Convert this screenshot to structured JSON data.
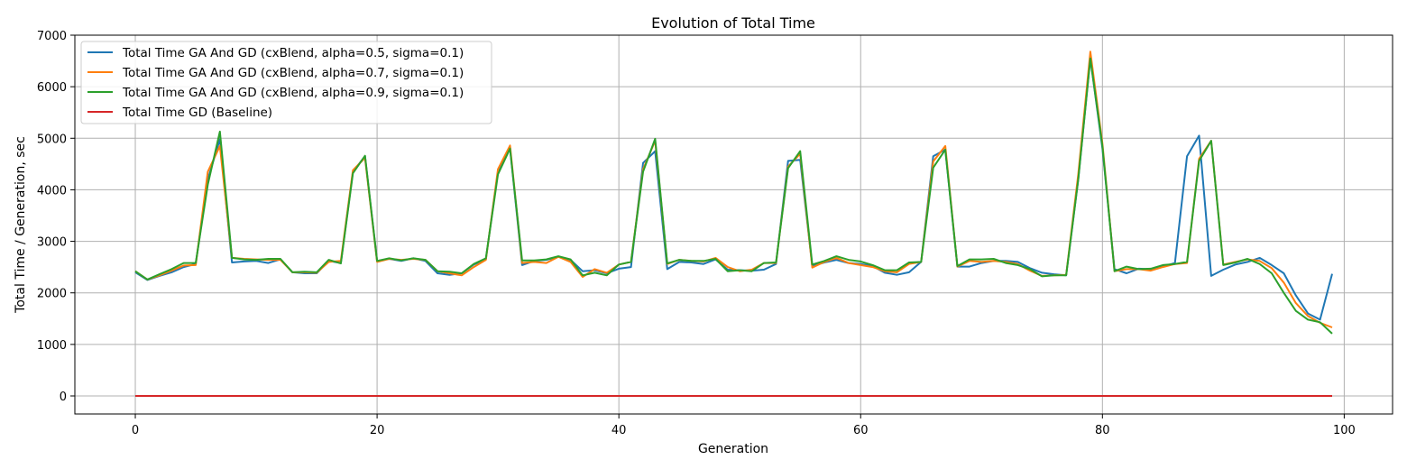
{
  "chart_data": {
    "type": "line",
    "title": "Evolution of Total Time",
    "xlabel": "Generation",
    "ylabel": "Total Time / Generation, sec",
    "xlim": [
      -5,
      104
    ],
    "ylim": [
      -350,
      7000
    ],
    "xticks": [
      0,
      20,
      40,
      60,
      80,
      100
    ],
    "yticks": [
      0,
      1000,
      2000,
      3000,
      4000,
      5000,
      6000,
      7000
    ],
    "grid": true,
    "legend_position": "top-left",
    "series": [
      {
        "name": "Total Time GA And GD (cxBlend, alpha=0.5, sigma=0.1)",
        "color": "#1f77b4",
        "values": [
          2400,
          2250,
          2330,
          2400,
          2500,
          2560,
          4200,
          4980,
          2590,
          2610,
          2620,
          2580,
          2650,
          2400,
          2380,
          2380,
          2620,
          2580,
          4350,
          4650,
          2620,
          2660,
          2620,
          2670,
          2620,
          2380,
          2350,
          2380,
          2550,
          2650,
          4350,
          4800,
          2540,
          2620,
          2640,
          2700,
          2640,
          2420,
          2440,
          2380,
          2470,
          2500,
          4520,
          4750,
          2460,
          2600,
          2590,
          2560,
          2650,
          2450,
          2440,
          2430,
          2450,
          2560,
          4560,
          4580,
          2520,
          2590,
          2640,
          2580,
          2560,
          2520,
          2390,
          2350,
          2400,
          2600,
          4650,
          4780,
          2510,
          2510,
          2580,
          2620,
          2620,
          2600,
          2480,
          2390,
          2360,
          2340,
          4200,
          6550,
          4800,
          2460,
          2380,
          2470,
          2460,
          2510,
          2580,
          4650,
          5050,
          2330,
          2450,
          2550,
          2600,
          2680,
          2540,
          2380,
          1950,
          1600,
          1480,
          2370
        ]
      },
      {
        "name": "Total Time GA And GD (cxBlend, alpha=0.7, sigma=0.1)",
        "color": "#ff7f0e",
        "values": [
          2420,
          2260,
          2340,
          2430,
          2530,
          2540,
          4350,
          4850,
          2680,
          2660,
          2650,
          2640,
          2640,
          2400,
          2400,
          2390,
          2600,
          2620,
          4380,
          4620,
          2600,
          2660,
          2640,
          2660,
          2640,
          2420,
          2380,
          2340,
          2500,
          2640,
          4400,
          4860,
          2580,
          2600,
          2580,
          2700,
          2600,
          2310,
          2460,
          2390,
          2550,
          2600,
          4400,
          4950,
          2560,
          2640,
          2620,
          2610,
          2680,
          2500,
          2420,
          2450,
          2580,
          2580,
          4450,
          4700,
          2490,
          2600,
          2680,
          2580,
          2540,
          2500,
          2420,
          2400,
          2560,
          2600,
          4550,
          4850,
          2510,
          2620,
          2600,
          2620,
          2600,
          2560,
          2430,
          2330,
          2340,
          2350,
          4300,
          6680,
          4900,
          2420,
          2460,
          2460,
          2430,
          2500,
          2560,
          2580,
          4600,
          4950,
          2550,
          2600,
          2650,
          2620,
          2480,
          2200,
          1800,
          1550,
          1420,
          1330
        ]
      },
      {
        "name": "Total Time GA And GD (cxBlend, alpha=0.9, sigma=0.1)",
        "color": "#2ca02c",
        "values": [
          2420,
          2260,
          2360,
          2460,
          2580,
          2580,
          4100,
          5130,
          2680,
          2650,
          2640,
          2660,
          2660,
          2400,
          2410,
          2400,
          2640,
          2570,
          4320,
          4660,
          2620,
          2670,
          2630,
          2670,
          2640,
          2420,
          2410,
          2380,
          2560,
          2670,
          4300,
          4800,
          2630,
          2630,
          2650,
          2710,
          2650,
          2340,
          2390,
          2340,
          2550,
          2600,
          4350,
          4990,
          2570,
          2640,
          2620,
          2620,
          2660,
          2420,
          2440,
          2420,
          2580,
          2590,
          4420,
          4750,
          2550,
          2620,
          2710,
          2640,
          2610,
          2540,
          2440,
          2440,
          2590,
          2600,
          4430,
          4780,
          2520,
          2650,
          2650,
          2660,
          2580,
          2540,
          2460,
          2320,
          2340,
          2340,
          4200,
          6550,
          4850,
          2420,
          2510,
          2460,
          2470,
          2540,
          2560,
          2600,
          4560,
          4950,
          2540,
          2590,
          2660,
          2560,
          2380,
          2000,
          1650,
          1480,
          1430,
          1210
        ]
      },
      {
        "name": "Total Time GD (Baseline)",
        "color": "#d62728",
        "values": [
          0,
          0,
          0,
          0,
          0,
          0,
          0,
          0,
          0,
          0,
          0,
          0,
          0,
          0,
          0,
          0,
          0,
          0,
          0,
          0,
          0,
          0,
          0,
          0,
          0,
          0,
          0,
          0,
          0,
          0,
          0,
          0,
          0,
          0,
          0,
          0,
          0,
          0,
          0,
          0,
          0,
          0,
          0,
          0,
          0,
          0,
          0,
          0,
          0,
          0,
          0,
          0,
          0,
          0,
          0,
          0,
          0,
          0,
          0,
          0,
          0,
          0,
          0,
          0,
          0,
          0,
          0,
          0,
          0,
          0,
          0,
          0,
          0,
          0,
          0,
          0,
          0,
          0,
          0,
          0,
          0,
          0,
          0,
          0,
          0,
          0,
          0,
          0,
          0,
          0,
          0,
          0,
          0,
          0,
          0,
          0,
          0,
          0,
          0,
          0
        ]
      }
    ]
  }
}
